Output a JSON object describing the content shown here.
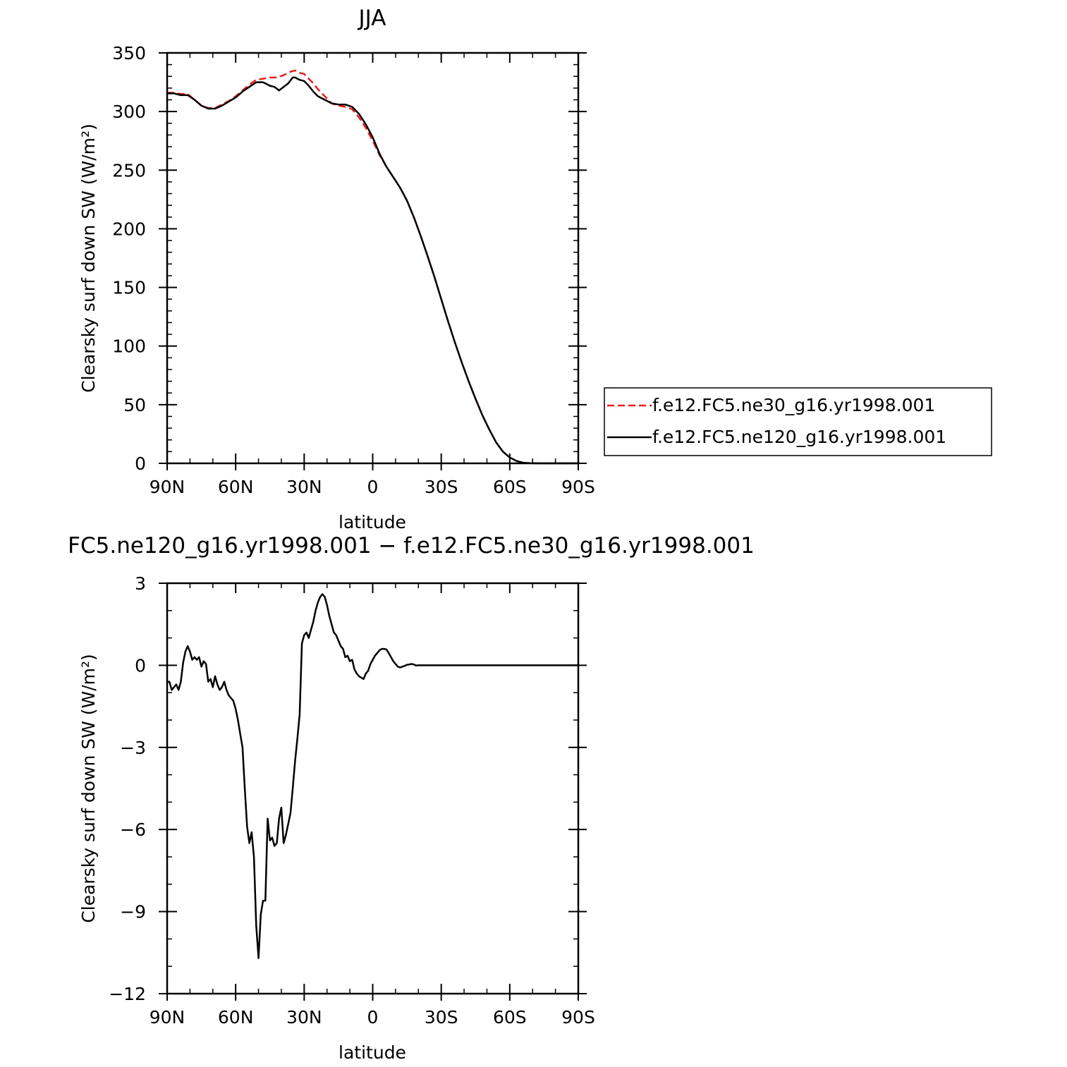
{
  "chart_data": [
    {
      "type": "line",
      "title": "JJA",
      "xlabel": "latitude",
      "ylabel": "Clearsky surf down SW (W/m²)",
      "xlim": [
        90,
        -90
      ],
      "ylim": [
        0,
        350
      ],
      "x_ticks": [
        90,
        60,
        30,
        0,
        -30,
        -60,
        -90
      ],
      "x_tick_labels": [
        "90N",
        "60N",
        "30N",
        "0",
        "30S",
        "60S",
        "90S"
      ],
      "y_ticks": [
        0,
        50,
        100,
        150,
        200,
        250,
        300,
        350
      ],
      "y_tick_labels": [
        "0",
        "50",
        "100",
        "150",
        "200",
        "250",
        "300",
        "350"
      ],
      "legend_position": "right",
      "grid": false,
      "series": [
        {
          "name": "f.e12.FC5.ne30_g16.yr1998.001",
          "color": "#ee1c1c",
          "dash": true,
          "x": [
            90,
            87,
            84,
            81,
            78,
            75,
            72,
            69,
            66,
            63,
            60,
            57,
            54,
            51,
            48,
            45,
            42,
            39,
            36,
            34,
            32,
            30,
            28,
            26,
            24,
            21,
            18,
            15,
            12,
            9,
            6,
            3,
            0,
            -3,
            -6,
            -9,
            -12,
            -15,
            -18,
            -21,
            -24,
            -27,
            -30,
            -33,
            -36,
            -39,
            -42,
            -45,
            -48,
            -51,
            -54,
            -57,
            -60,
            -63,
            -66,
            -69,
            -72,
            -75,
            -78,
            -81,
            -84,
            -87,
            -90
          ],
          "y": [
            316,
            316,
            315,
            315,
            310,
            305,
            303,
            303,
            306,
            309,
            313,
            318,
            323,
            327,
            328,
            329,
            329,
            331,
            334,
            335,
            333,
            332,
            328,
            324,
            319,
            313,
            307,
            305,
            304,
            302,
            295,
            286,
            275,
            263,
            253,
            244,
            235,
            224,
            210,
            194,
            177,
            159,
            140,
            121,
            103,
            86,
            70,
            55,
            41,
            29,
            18,
            10,
            5,
            2,
            0.5,
            0.1,
            0,
            0,
            0,
            0,
            0,
            0,
            0
          ]
        },
        {
          "name": "f.e12.FC5.ne120_g16.yr1998.001",
          "color": "#000000",
          "dash": false,
          "x": [
            90,
            87,
            84,
            81,
            78,
            75,
            72,
            69,
            66,
            63,
            60,
            57,
            54,
            51,
            48,
            45,
            43,
            41,
            39,
            37,
            35,
            34,
            32,
            30,
            28,
            26,
            24,
            21,
            18,
            15,
            12,
            9,
            6,
            3,
            0,
            -3,
            -6,
            -9,
            -12,
            -15,
            -18,
            -21,
            -24,
            -27,
            -30,
            -33,
            -36,
            -39,
            -42,
            -45,
            -48,
            -51,
            -54,
            -57,
            -60,
            -63,
            -66,
            -69,
            -72,
            -75,
            -78,
            -81,
            -84,
            -87,
            -90
          ],
          "y": [
            315.5,
            315.5,
            314,
            314,
            310,
            305,
            302.5,
            302.5,
            305,
            308.5,
            312,
            317,
            321,
            325,
            325,
            322,
            321,
            318,
            321,
            324,
            329,
            329,
            327,
            326,
            322,
            317,
            313,
            310,
            307,
            306,
            306,
            304,
            298,
            289,
            278,
            264,
            253,
            244,
            235,
            224,
            210,
            194,
            177,
            159,
            140,
            121,
            103,
            86,
            70,
            55,
            41,
            29,
            18,
            10,
            5,
            2,
            0.5,
            0.1,
            0,
            0,
            0,
            0,
            0,
            0,
            0
          ]
        }
      ]
    },
    {
      "type": "line",
      "title": "FC5.ne120_g16.yr1998.001 − f.e12.FC5.ne30_g16.yr1998.001",
      "xlabel": "latitude",
      "ylabel": "Clearsky surf down SW (W/m²)",
      "xlim": [
        90,
        -90
      ],
      "ylim": [
        -12,
        3
      ],
      "x_ticks": [
        90,
        60,
        30,
        0,
        -30,
        -60,
        -90
      ],
      "x_tick_labels": [
        "90N",
        "60N",
        "30N",
        "0",
        "30S",
        "60S",
        "90S"
      ],
      "y_ticks": [
        -12,
        -9,
        -6,
        -3,
        0,
        3
      ],
      "y_tick_labels": [
        "−12",
        "−9",
        "−6",
        "−3",
        "0",
        "3"
      ],
      "grid": false,
      "series": [
        {
          "color": "#000000",
          "dash": false,
          "x": [
            90,
            89,
            88,
            87,
            86,
            85,
            84,
            83,
            82,
            81,
            80,
            79,
            78,
            77,
            76,
            75,
            74,
            73,
            72,
            71,
            70,
            69,
            68,
            67,
            66,
            65,
            64,
            63,
            62,
            61,
            60,
            59,
            58,
            57,
            56,
            55,
            54,
            53,
            52,
            51,
            50,
            49,
            48,
            47,
            46,
            45,
            44,
            43,
            42,
            41,
            40.5,
            40,
            39,
            38,
            37,
            36,
            35,
            34,
            33,
            32,
            31,
            30,
            29,
            28,
            27,
            26,
            25,
            24,
            23,
            22,
            21,
            20,
            19,
            18,
            17,
            16,
            15,
            14,
            13,
            12,
            11,
            10,
            9,
            8,
            7,
            6,
            5,
            4,
            3,
            2,
            1,
            0,
            -1,
            -2,
            -3,
            -4,
            -5,
            -6,
            -7,
            -8,
            -9,
            -10,
            -11,
            -12,
            -13,
            -14,
            -15,
            -16,
            -17,
            -18,
            -19,
            -20,
            -21,
            -22,
            -23,
            -24,
            -25,
            -26,
            -27,
            -28,
            -29,
            -30,
            -31,
            -32,
            -33,
            -34,
            -35,
            -36,
            -37,
            -38,
            -39,
            -40,
            -41,
            -42,
            -43,
            -44,
            -45,
            -46,
            -47,
            -48,
            -50,
            -52,
            -54,
            -56,
            -58,
            -60,
            -62,
            -64,
            -66,
            -68,
            -70,
            -72,
            -74,
            -76,
            -78,
            -80,
            -82,
            -84,
            -86,
            -88,
            -90
          ],
          "y": [
            -0.6,
            -0.6,
            -0.9,
            -0.8,
            -0.7,
            -0.9,
            -0.6,
            0.1,
            0.5,
            0.7,
            0.5,
            0.2,
            0.3,
            0.2,
            0.3,
            -0.05,
            0.15,
            0.05,
            -0.6,
            -0.5,
            -0.8,
            -0.4,
            -0.7,
            -0.9,
            -0.8,
            -0.6,
            -0.9,
            -1.1,
            -1.2,
            -1.3,
            -1.6,
            -2.0,
            -2.5,
            -3.0,
            -4.5,
            -5.9,
            -6.5,
            -6.1,
            -7.0,
            -9.5,
            -10.7,
            -9.1,
            -8.6,
            -8.6,
            -5.6,
            -6.4,
            -6.3,
            -6.6,
            -6.5,
            -5.6,
            -5.4,
            -5.2,
            -6.5,
            -6.2,
            -5.8,
            -5.4,
            -4.5,
            -3.5,
            -2.7,
            -1.8,
            0.8,
            1.1,
            1.2,
            1.0,
            1.3,
            1.6,
            2.0,
            2.3,
            2.5,
            2.6,
            2.5,
            2.2,
            1.8,
            1.5,
            1.2,
            1.1,
            0.9,
            0.7,
            0.6,
            0.3,
            0.35,
            0.15,
            0.2,
            -0.15,
            -0.3,
            -0.4,
            -0.45,
            -0.5,
            -0.3,
            -0.2,
            0.05,
            0.2,
            0.35,
            0.45,
            0.55,
            0.6,
            0.6,
            0.58,
            0.45,
            0.3,
            0.15,
            0.05,
            -0.05,
            -0.08,
            -0.05,
            -0.02,
            0.02,
            0.03,
            0.05,
            0.03,
            -0.01,
            0.0,
            0.0,
            0.0,
            0.0,
            0.0,
            0.0,
            0.0,
            0.0,
            0.0,
            0.0,
            0.0,
            0.0,
            0.0,
            0.0,
            0.0,
            0.0,
            0.0,
            0.0,
            0.0,
            0.0,
            0.0,
            0.0,
            0.0,
            0.0,
            0.0,
            0.0,
            0.0,
            0.0,
            0.0,
            0.0,
            0.0,
            0.0,
            0.0,
            0.0,
            0.0,
            0.0,
            0.0,
            0.0,
            0.0,
            0.0,
            0.0,
            0.0,
            0.0,
            0.0,
            0.0,
            0.0,
            0.0,
            0.0,
            0.0,
            0.0
          ]
        }
      ]
    }
  ]
}
